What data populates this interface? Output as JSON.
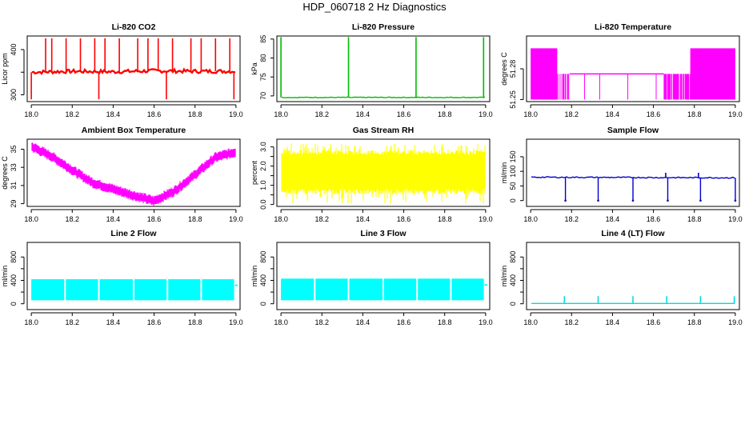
{
  "title": "HDP_060718  2 Hz Diagnostics",
  "chart_data": [
    {
      "type": "line",
      "title": "Li-820 CO2",
      "ylabel": "Licor ppm",
      "color": "#ff0000",
      "xlim": [
        17.98,
        19.02
      ],
      "ylim": [
        285,
        430
      ],
      "xticks": [
        18.0,
        18.2,
        18.4,
        18.6,
        18.8,
        19.0
      ],
      "xtick_labels": [
        "18.0",
        "18.2",
        "18.4",
        "18.6",
        "18.8",
        "19.0"
      ],
      "yticks": [
        300,
        350,
        400
      ],
      "ytick_labels": [
        "300",
        "",
        "400"
      ],
      "series": [
        {
          "name": "CO2",
          "x": [
            18.0,
            18.2,
            18.4,
            18.6,
            18.8,
            19.0
          ],
          "y": [
            350,
            352,
            351,
            353,
            352,
            352
          ]
        }
      ],
      "spikes_up": [
        18.07,
        18.1,
        18.17,
        18.24,
        18.31,
        18.36,
        18.43,
        18.52,
        18.57,
        18.62,
        18.69,
        18.78,
        18.83,
        18.9,
        18.97
      ],
      "spikes_down": [
        18.0,
        18.33,
        18.66,
        18.99
      ],
      "peak_y": 425,
      "trough_y": 290,
      "noise": 4
    },
    {
      "type": "line",
      "title": "Li-820 Pressure",
      "ylabel": "kPa",
      "color": "#00bb00",
      "xlim": [
        17.98,
        19.02
      ],
      "ylim": [
        68.5,
        85.8
      ],
      "xticks": [
        18.0,
        18.2,
        18.4,
        18.6,
        18.8,
        19.0
      ],
      "xtick_labels": [
        "18.0",
        "18.2",
        "18.4",
        "18.6",
        "18.8",
        "19.0"
      ],
      "yticks": [
        70,
        75,
        80,
        85
      ],
      "ytick_labels": [
        "70",
        "75",
        "80",
        "85"
      ],
      "series": [
        {
          "name": "Pressure",
          "x": [
            18.0,
            19.0
          ],
          "y": [
            69.6,
            69.6
          ]
        }
      ],
      "spikes_up": [
        18.0,
        18.33,
        18.66,
        18.99
      ],
      "spikes_down": [],
      "peak_y": 85.5,
      "trough_y": 69.6,
      "noise": 0.1
    },
    {
      "type": "step",
      "title": "Li-820 Temperature",
      "ylabel": "degrees C",
      "color": "#ff00ff",
      "xlim": [
        17.98,
        19.02
      ],
      "ylim": [
        51.248,
        51.312
      ],
      "xticks": [
        18.0,
        18.2,
        18.4,
        18.6,
        18.8,
        19.0
      ],
      "xtick_labels": [
        "18.0",
        "18.2",
        "18.4",
        "18.6",
        "18.8",
        "19.0"
      ],
      "yticks": [
        51.25,
        51.28
      ],
      "ytick_labels": [
        "51.25",
        "51.28"
      ],
      "levels": [
        51.25,
        51.275,
        51.3
      ],
      "segments": [
        {
          "x0": 18.0,
          "x1": 18.13,
          "lo": 51.25,
          "hi": 51.3
        },
        {
          "x0": 18.13,
          "x1": 18.19,
          "lo": 51.25,
          "hi": 51.275
        },
        {
          "x0": 18.19,
          "x1": 18.65,
          "lo": 51.275,
          "hi": 51.275
        },
        {
          "x0": 18.65,
          "x1": 18.78,
          "lo": 51.25,
          "hi": 51.275
        },
        {
          "x0": 18.78,
          "x1": 19.0,
          "lo": 51.25,
          "hi": 51.3
        }
      ]
    },
    {
      "type": "line",
      "title": "Ambient Box Temperature",
      "ylabel": "degrees C",
      "color": "#ff00ff",
      "xlim": [
        17.98,
        19.02
      ],
      "ylim": [
        28.7,
        36.1
      ],
      "xticks": [
        18.0,
        18.2,
        18.4,
        18.6,
        18.8,
        19.0
      ],
      "xtick_labels": [
        "18.0",
        "18.2",
        "18.4",
        "18.6",
        "18.8",
        "19.0"
      ],
      "yticks": [
        29,
        31,
        33,
        35
      ],
      "ytick_labels": [
        "29",
        "31",
        "33",
        "35"
      ],
      "series": [
        {
          "name": "Box Temp",
          "x": [
            18.0,
            18.1,
            18.2,
            18.3,
            18.4,
            18.5,
            18.6,
            18.7,
            18.8,
            18.9,
            19.0
          ],
          "y": [
            35.3,
            34.2,
            32.7,
            31.3,
            30.6,
            29.9,
            29.3,
            30.4,
            32.2,
            34.1,
            34.7
          ]
        }
      ],
      "band": 0.9
    },
    {
      "type": "band",
      "title": "Gas Stream RH",
      "ylabel": "percent",
      "color": "#ffff00",
      "xlim": [
        17.98,
        19.02
      ],
      "ylim": [
        -0.1,
        3.4
      ],
      "xticks": [
        18.0,
        18.2,
        18.4,
        18.6,
        18.8,
        19.0
      ],
      "xtick_labels": [
        "18.0",
        "18.2",
        "18.4",
        "18.6",
        "18.8",
        "19.0"
      ],
      "yticks": [
        0.0,
        0.5,
        1.0,
        1.5,
        2.0,
        2.5,
        3.0
      ],
      "ytick_labels": [
        "0.0",
        "",
        "1.0",
        "",
        "2.0",
        "",
        "3.0"
      ],
      "core": [
        0.8,
        2.6
      ],
      "extreme": [
        0.0,
        3.2
      ]
    },
    {
      "type": "line",
      "title": "Sample Flow",
      "ylabel": "ml/min",
      "color": "#0000cc",
      "xlim": [
        17.98,
        19.02
      ],
      "ylim": [
        -20,
        210
      ],
      "xticks": [
        18.0,
        18.2,
        18.4,
        18.6,
        18.8,
        19.0
      ],
      "xtick_labels": [
        "18.0",
        "18.2",
        "18.4",
        "18.6",
        "18.8",
        "19.0"
      ],
      "yticks": [
        0,
        50,
        100,
        150
      ],
      "ytick_labels": [
        "0",
        "50",
        "100",
        "150"
      ],
      "series": [
        {
          "name": "Sample Flow",
          "x": [
            18.0,
            19.0
          ],
          "y": [
            80,
            78
          ]
        }
      ],
      "dropouts": [
        18.17,
        18.33,
        18.5,
        18.67,
        18.83,
        19.0
      ],
      "spikes_up": [
        18.66,
        18.82
      ],
      "peak_y": 95,
      "trough_y": 0,
      "noise": 2
    },
    {
      "type": "blocks",
      "title": "Line 2 Flow",
      "ylabel": "ml/min",
      "color": "#00ffff",
      "xlim": [
        17.98,
        19.02
      ],
      "ylim": [
        -100,
        1050
      ],
      "xticks": [
        18.0,
        18.2,
        18.4,
        18.6,
        18.8,
        19.0
      ],
      "xtick_labels": [
        "18.0",
        "18.2",
        "18.4",
        "18.6",
        "18.8",
        "19.0"
      ],
      "yticks": [
        0,
        200,
        400,
        600,
        800
      ],
      "ytick_labels": [
        "0",
        "",
        "400",
        "",
        "800"
      ],
      "band": [
        60,
        420
      ],
      "gaps": [
        18.165,
        18.33,
        18.5,
        18.665,
        18.83
      ],
      "end": 18.995,
      "tail": [
        18.995,
        19.0
      ]
    },
    {
      "type": "blocks",
      "title": "Line 3 Flow",
      "ylabel": "ml/min",
      "color": "#00ffff",
      "xlim": [
        17.98,
        19.02
      ],
      "ylim": [
        -100,
        1050
      ],
      "xticks": [
        18.0,
        18.2,
        18.4,
        18.6,
        18.8,
        19.0
      ],
      "xtick_labels": [
        "18.0",
        "18.2",
        "18.4",
        "18.6",
        "18.8",
        "19.0"
      ],
      "yticks": [
        0,
        200,
        400,
        600,
        800
      ],
      "ytick_labels": [
        "0",
        "",
        "400",
        "",
        "800"
      ],
      "band": [
        60,
        430
      ],
      "gaps": [
        18.165,
        18.33,
        18.5,
        18.665,
        18.83
      ],
      "end": 18.995,
      "tail": [
        18.995,
        19.0
      ]
    },
    {
      "type": "line",
      "title": "Line 4 (LT) Flow",
      "ylabel": "ml/min",
      "color": "#00dddd",
      "xlim": [
        17.98,
        19.02
      ],
      "ylim": [
        -100,
        1050
      ],
      "xticks": [
        18.0,
        18.2,
        18.4,
        18.6,
        18.8,
        19.0
      ],
      "xtick_labels": [
        "18.0",
        "18.2",
        "18.4",
        "18.6",
        "18.8",
        "19.0"
      ],
      "yticks": [
        0,
        200,
        400,
        600,
        800
      ],
      "ytick_labels": [
        "0",
        "",
        "400",
        "",
        "800"
      ],
      "series": [
        {
          "name": "Line 4 Flow",
          "x": [
            18.0,
            19.0
          ],
          "y": [
            5,
            5
          ]
        }
      ],
      "spikes_up": [
        18.165,
        18.33,
        18.5,
        18.665,
        18.83,
        18.995
      ],
      "spikes_down": [],
      "peak_y": 130,
      "trough_y": 5,
      "noise": 0
    }
  ]
}
